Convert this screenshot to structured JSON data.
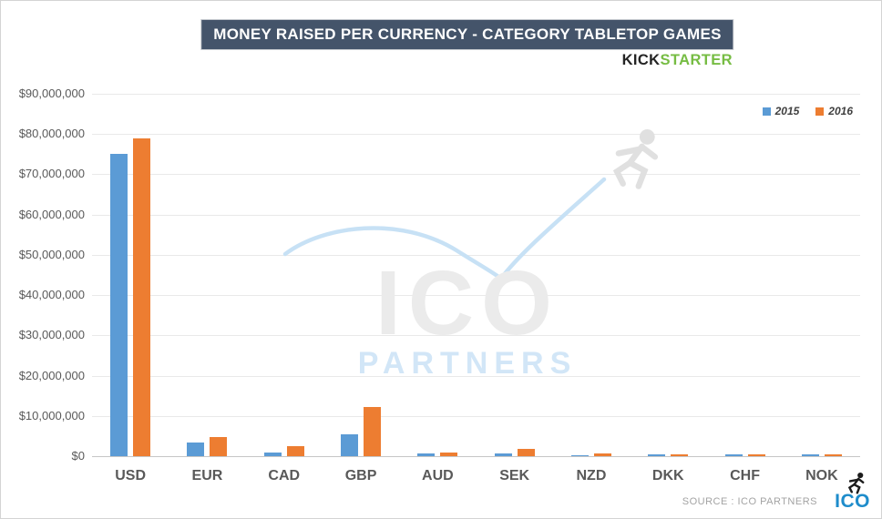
{
  "header": {
    "title": "MONEY RAISED PER CURRENCY - CATEGORY TABLETOP GAMES",
    "brand_kick": "KICK",
    "brand_starter": "STARTER"
  },
  "watermark": {
    "line1": "ICO",
    "line2": "PARTNERS"
  },
  "footer": {
    "source": "SOURCE : ICO PARTNERS",
    "logo_text": "ICO"
  },
  "colors": {
    "title_bg": "#44546A",
    "kick": "#242424",
    "starter": "#76BC43",
    "series_2015": "#5B9BD5",
    "series_2016": "#ED7D31",
    "logo_blue": "#1E8CCB"
  },
  "chart_data": {
    "type": "bar",
    "title": "MONEY RAISED PER CURRENCY - CATEGORY TABLETOP GAMES",
    "categories": [
      "USD",
      "EUR",
      "CAD",
      "GBP",
      "AUD",
      "SEK",
      "NZD",
      "DKK",
      "CHF",
      "NOK"
    ],
    "series": [
      {
        "name": "2015",
        "color": "#5B9BD5",
        "values": [
          75000000,
          3400000,
          1000000,
          5400000,
          750000,
          600000,
          300000,
          350000,
          350000,
          350000
        ]
      },
      {
        "name": "2016",
        "color": "#ED7D31",
        "values": [
          79000000,
          4700000,
          2500000,
          12200000,
          900000,
          1700000,
          750000,
          350000,
          350000,
          350000
        ]
      }
    ],
    "xlabel": "",
    "ylabel": "",
    "ylim": [
      0,
      90000000
    ],
    "ytick_step": 10000000,
    "ytick_labels": [
      "$0",
      "$10,000,000",
      "$20,000,000",
      "$30,000,000",
      "$40,000,000",
      "$50,000,000",
      "$60,000,000",
      "$70,000,000",
      "$80,000,000",
      "$90,000,000"
    ],
    "grid": true,
    "legend_position": "top-right"
  }
}
